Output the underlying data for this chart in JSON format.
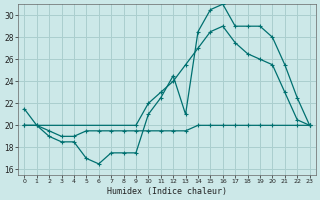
{
  "xlabel": "Humidex (Indice chaleur)",
  "bg_color": "#cce8e8",
  "grid_color": "#aacece",
  "line_color": "#007070",
  "xlim": [
    -0.5,
    23.5
  ],
  "ylim": [
    15.5,
    31.0
  ],
  "xticks": [
    0,
    1,
    2,
    3,
    4,
    5,
    6,
    7,
    8,
    9,
    10,
    11,
    12,
    13,
    14,
    15,
    16,
    17,
    18,
    19,
    20,
    21,
    22,
    23
  ],
  "yticks": [
    16,
    18,
    20,
    22,
    24,
    26,
    28,
    30
  ],
  "line1_x": [
    0,
    1,
    2,
    3,
    4,
    5,
    6,
    7,
    8,
    9,
    10,
    11,
    12,
    13,
    14,
    15,
    16,
    17,
    18,
    19,
    20,
    21,
    22,
    23
  ],
  "line1_y": [
    21.5,
    20.0,
    19.0,
    18.5,
    18.5,
    17.0,
    16.5,
    17.5,
    17.5,
    17.5,
    21.0,
    22.5,
    24.5,
    21.0,
    28.5,
    30.5,
    31.0,
    29.0,
    29.0,
    29.0,
    28.0,
    25.5,
    22.5,
    20.0
  ],
  "line2_x": [
    0,
    1,
    2,
    3,
    4,
    5,
    6,
    7,
    8,
    9,
    10,
    11,
    12,
    13,
    14,
    15,
    16,
    17,
    18,
    19,
    20,
    22,
    23
  ],
  "line2_y": [
    20.0,
    20.0,
    19.5,
    19.0,
    19.0,
    19.5,
    19.5,
    19.5,
    19.5,
    19.5,
    19.5,
    19.5,
    19.5,
    19.5,
    20.0,
    20.0,
    20.0,
    20.0,
    20.0,
    20.0,
    20.0,
    20.0,
    20.0
  ],
  "line3_x": [
    0,
    9,
    10,
    11,
    12,
    13,
    14,
    15,
    16,
    17,
    18,
    19,
    20,
    21,
    22,
    23
  ],
  "line3_y": [
    20.0,
    20.0,
    22.0,
    23.0,
    24.0,
    25.5,
    27.0,
    28.5,
    29.0,
    27.5,
    26.5,
    26.0,
    25.5,
    23.0,
    20.5,
    20.0
  ]
}
